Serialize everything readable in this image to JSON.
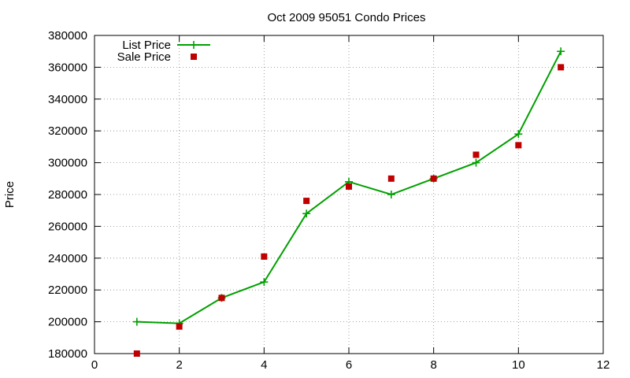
{
  "chart_data": {
    "type": "line",
    "title": "Oct 2009 95051 Condo Prices",
    "xlabel": "",
    "ylabel": "Price",
    "xlim": [
      0,
      12
    ],
    "ylim": [
      180000,
      380000
    ],
    "xticks": [
      0,
      2,
      4,
      6,
      8,
      10,
      12
    ],
    "yticks": [
      180000,
      200000,
      220000,
      240000,
      260000,
      280000,
      300000,
      320000,
      340000,
      360000,
      380000
    ],
    "grid": true,
    "legend_position": "top-left",
    "series": [
      {
        "name": "List Price",
        "style": "line-plus",
        "color": "#00a000",
        "x": [
          1,
          2,
          3,
          4,
          5,
          6,
          7,
          8,
          9,
          10,
          11
        ],
        "y": [
          200000,
          199000,
          215000,
          225000,
          268000,
          288000,
          280000,
          290000,
          300000,
          318000,
          370000
        ]
      },
      {
        "name": "Sale Price",
        "style": "square",
        "color": "#c00000",
        "x": [
          1,
          2,
          3,
          4,
          5,
          6,
          7,
          8,
          9,
          10,
          11
        ],
        "y": [
          180000,
          197000,
          215000,
          241000,
          276000,
          285000,
          290000,
          290000,
          305000,
          311000,
          360000
        ]
      }
    ]
  }
}
